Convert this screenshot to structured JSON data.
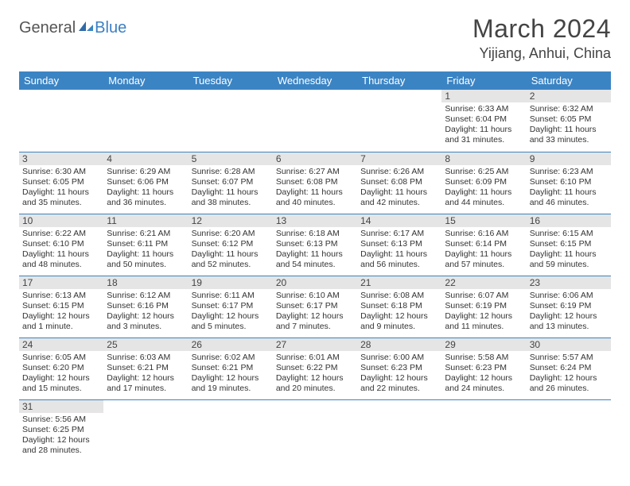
{
  "brand": {
    "text1": "General",
    "text2": "Blue",
    "accent_color": "#3b7fc4"
  },
  "title": "March 2024",
  "location": "Yijiang, Anhui, China",
  "colors": {
    "header_bg": "#3b84c4",
    "header_text": "#ffffff",
    "daynum_bg": "#e5e5e5",
    "row_border": "#3b84c4",
    "text": "#333333"
  },
  "weekdays": [
    "Sunday",
    "Monday",
    "Tuesday",
    "Wednesday",
    "Thursday",
    "Friday",
    "Saturday"
  ],
  "weeks": [
    [
      null,
      null,
      null,
      null,
      null,
      {
        "n": "1",
        "sr": "Sunrise: 6:33 AM",
        "ss": "Sunset: 6:04 PM",
        "d1": "Daylight: 11 hours",
        "d2": "and 31 minutes."
      },
      {
        "n": "2",
        "sr": "Sunrise: 6:32 AM",
        "ss": "Sunset: 6:05 PM",
        "d1": "Daylight: 11 hours",
        "d2": "and 33 minutes."
      }
    ],
    [
      {
        "n": "3",
        "sr": "Sunrise: 6:30 AM",
        "ss": "Sunset: 6:05 PM",
        "d1": "Daylight: 11 hours",
        "d2": "and 35 minutes."
      },
      {
        "n": "4",
        "sr": "Sunrise: 6:29 AM",
        "ss": "Sunset: 6:06 PM",
        "d1": "Daylight: 11 hours",
        "d2": "and 36 minutes."
      },
      {
        "n": "5",
        "sr": "Sunrise: 6:28 AM",
        "ss": "Sunset: 6:07 PM",
        "d1": "Daylight: 11 hours",
        "d2": "and 38 minutes."
      },
      {
        "n": "6",
        "sr": "Sunrise: 6:27 AM",
        "ss": "Sunset: 6:08 PM",
        "d1": "Daylight: 11 hours",
        "d2": "and 40 minutes."
      },
      {
        "n": "7",
        "sr": "Sunrise: 6:26 AM",
        "ss": "Sunset: 6:08 PM",
        "d1": "Daylight: 11 hours",
        "d2": "and 42 minutes."
      },
      {
        "n": "8",
        "sr": "Sunrise: 6:25 AM",
        "ss": "Sunset: 6:09 PM",
        "d1": "Daylight: 11 hours",
        "d2": "and 44 minutes."
      },
      {
        "n": "9",
        "sr": "Sunrise: 6:23 AM",
        "ss": "Sunset: 6:10 PM",
        "d1": "Daylight: 11 hours",
        "d2": "and 46 minutes."
      }
    ],
    [
      {
        "n": "10",
        "sr": "Sunrise: 6:22 AM",
        "ss": "Sunset: 6:10 PM",
        "d1": "Daylight: 11 hours",
        "d2": "and 48 minutes."
      },
      {
        "n": "11",
        "sr": "Sunrise: 6:21 AM",
        "ss": "Sunset: 6:11 PM",
        "d1": "Daylight: 11 hours",
        "d2": "and 50 minutes."
      },
      {
        "n": "12",
        "sr": "Sunrise: 6:20 AM",
        "ss": "Sunset: 6:12 PM",
        "d1": "Daylight: 11 hours",
        "d2": "and 52 minutes."
      },
      {
        "n": "13",
        "sr": "Sunrise: 6:18 AM",
        "ss": "Sunset: 6:13 PM",
        "d1": "Daylight: 11 hours",
        "d2": "and 54 minutes."
      },
      {
        "n": "14",
        "sr": "Sunrise: 6:17 AM",
        "ss": "Sunset: 6:13 PM",
        "d1": "Daylight: 11 hours",
        "d2": "and 56 minutes."
      },
      {
        "n": "15",
        "sr": "Sunrise: 6:16 AM",
        "ss": "Sunset: 6:14 PM",
        "d1": "Daylight: 11 hours",
        "d2": "and 57 minutes."
      },
      {
        "n": "16",
        "sr": "Sunrise: 6:15 AM",
        "ss": "Sunset: 6:15 PM",
        "d1": "Daylight: 11 hours",
        "d2": "and 59 minutes."
      }
    ],
    [
      {
        "n": "17",
        "sr": "Sunrise: 6:13 AM",
        "ss": "Sunset: 6:15 PM",
        "d1": "Daylight: 12 hours",
        "d2": "and 1 minute."
      },
      {
        "n": "18",
        "sr": "Sunrise: 6:12 AM",
        "ss": "Sunset: 6:16 PM",
        "d1": "Daylight: 12 hours",
        "d2": "and 3 minutes."
      },
      {
        "n": "19",
        "sr": "Sunrise: 6:11 AM",
        "ss": "Sunset: 6:17 PM",
        "d1": "Daylight: 12 hours",
        "d2": "and 5 minutes."
      },
      {
        "n": "20",
        "sr": "Sunrise: 6:10 AM",
        "ss": "Sunset: 6:17 PM",
        "d1": "Daylight: 12 hours",
        "d2": "and 7 minutes."
      },
      {
        "n": "21",
        "sr": "Sunrise: 6:08 AM",
        "ss": "Sunset: 6:18 PM",
        "d1": "Daylight: 12 hours",
        "d2": "and 9 minutes."
      },
      {
        "n": "22",
        "sr": "Sunrise: 6:07 AM",
        "ss": "Sunset: 6:19 PM",
        "d1": "Daylight: 12 hours",
        "d2": "and 11 minutes."
      },
      {
        "n": "23",
        "sr": "Sunrise: 6:06 AM",
        "ss": "Sunset: 6:19 PM",
        "d1": "Daylight: 12 hours",
        "d2": "and 13 minutes."
      }
    ],
    [
      {
        "n": "24",
        "sr": "Sunrise: 6:05 AM",
        "ss": "Sunset: 6:20 PM",
        "d1": "Daylight: 12 hours",
        "d2": "and 15 minutes."
      },
      {
        "n": "25",
        "sr": "Sunrise: 6:03 AM",
        "ss": "Sunset: 6:21 PM",
        "d1": "Daylight: 12 hours",
        "d2": "and 17 minutes."
      },
      {
        "n": "26",
        "sr": "Sunrise: 6:02 AM",
        "ss": "Sunset: 6:21 PM",
        "d1": "Daylight: 12 hours",
        "d2": "and 19 minutes."
      },
      {
        "n": "27",
        "sr": "Sunrise: 6:01 AM",
        "ss": "Sunset: 6:22 PM",
        "d1": "Daylight: 12 hours",
        "d2": "and 20 minutes."
      },
      {
        "n": "28",
        "sr": "Sunrise: 6:00 AM",
        "ss": "Sunset: 6:23 PM",
        "d1": "Daylight: 12 hours",
        "d2": "and 22 minutes."
      },
      {
        "n": "29",
        "sr": "Sunrise: 5:58 AM",
        "ss": "Sunset: 6:23 PM",
        "d1": "Daylight: 12 hours",
        "d2": "and 24 minutes."
      },
      {
        "n": "30",
        "sr": "Sunrise: 5:57 AM",
        "ss": "Sunset: 6:24 PM",
        "d1": "Daylight: 12 hours",
        "d2": "and 26 minutes."
      }
    ],
    [
      {
        "n": "31",
        "sr": "Sunrise: 5:56 AM",
        "ss": "Sunset: 6:25 PM",
        "d1": "Daylight: 12 hours",
        "d2": "and 28 minutes."
      },
      null,
      null,
      null,
      null,
      null,
      null
    ]
  ]
}
